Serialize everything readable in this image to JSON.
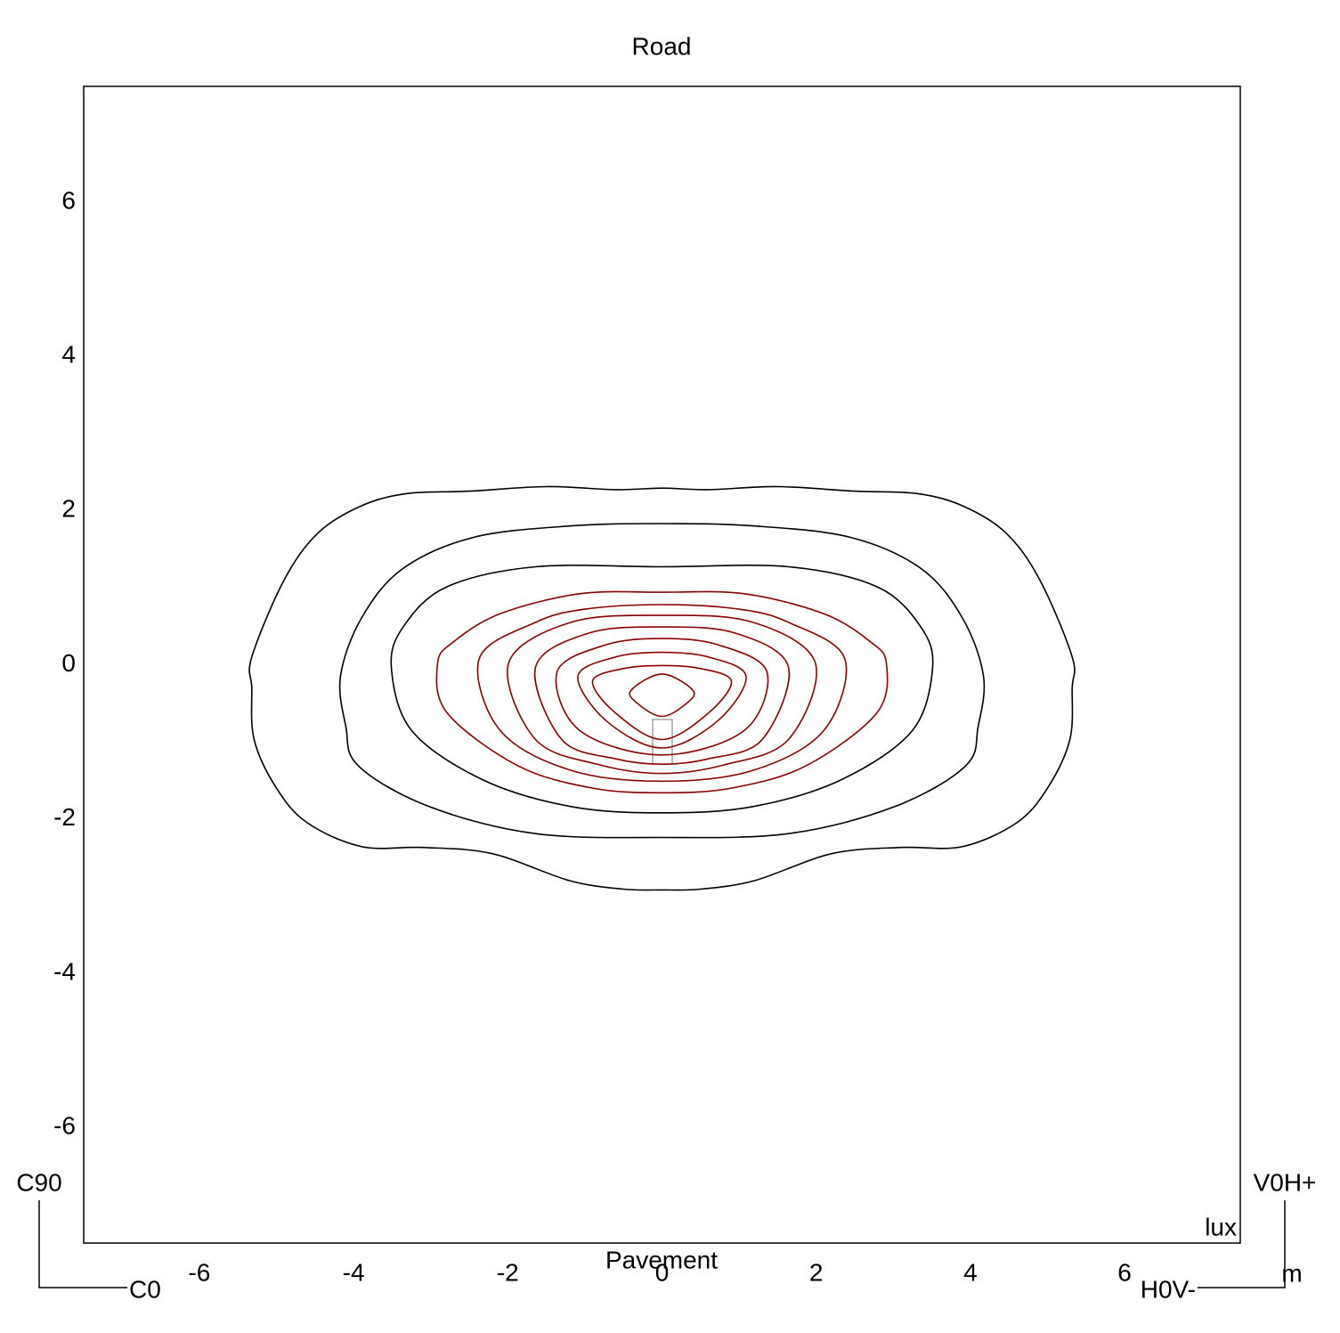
{
  "chart_data": {
    "type": "contour",
    "title": "Road",
    "xlabel": "Pavement",
    "unit": "lux",
    "corner_labels": {
      "c90": "C90",
      "c0": "C0",
      "v0h": "V0H+",
      "h0v": "H0V-",
      "m": "m"
    },
    "xlim": [
      -7.5,
      7.5
    ],
    "ylim": [
      -7.5,
      7.5
    ],
    "xticks": [
      -6,
      -4,
      -2,
      0,
      2,
      4,
      6
    ],
    "yticks": [
      -6,
      -4,
      -2,
      0,
      2,
      4,
      6
    ],
    "contours": [
      {
        "color": "#000000",
        "x": [
          0,
          -0.6,
          -1.5,
          -2.5,
          -3.3,
          -3.9,
          -4.46,
          -4.9,
          -5.32,
          -5.32,
          -5.29,
          -5.0,
          -4.6,
          -3.89,
          -3.1,
          -2.2,
          -1.2,
          -0.5,
          0,
          0.5,
          1.2,
          2.2,
          3.1,
          3.89,
          4.6,
          5.0,
          5.29,
          5.32,
          5.32,
          4.9,
          4.46,
          3.9,
          3.3,
          2.5,
          1.5,
          0.6
        ],
        "y": [
          2.29,
          2.27,
          2.31,
          2.25,
          2.22,
          2.06,
          1.71,
          1.1,
          0.1,
          -0.3,
          -0.97,
          -1.6,
          -2.05,
          -2.36,
          -2.37,
          -2.45,
          -2.8,
          -2.91,
          -2.92,
          -2.91,
          -2.8,
          -2.45,
          -2.37,
          -2.36,
          -2.05,
          -1.6,
          -0.97,
          -0.3,
          0.1,
          1.1,
          1.71,
          2.06,
          2.22,
          2.25,
          2.31,
          2.27
        ]
      },
      {
        "color": "#000000",
        "x": [
          0,
          -1.18,
          -2.45,
          -3.37,
          -3.9,
          -4.17,
          -4.1,
          -3.94,
          -3.02,
          -1.64,
          0,
          1.64,
          3.02,
          3.94,
          4.1,
          4.17,
          3.9,
          3.37,
          2.45,
          1.18
        ],
        "y": [
          1.83,
          1.8,
          1.65,
          1.24,
          0.6,
          -0.15,
          -0.8,
          -1.31,
          -1.84,
          -2.19,
          -2.24,
          -2.19,
          -1.84,
          -1.31,
          -0.8,
          -0.15,
          0.6,
          1.24,
          1.65,
          1.8
        ]
      },
      {
        "color": "#000000",
        "x": [
          0,
          -1.64,
          -2.79,
          -3.35,
          -3.51,
          -3.25,
          -2.33,
          -1.18,
          0,
          1.18,
          2.33,
          3.25,
          3.51,
          3.35,
          2.79,
          1.64
        ],
        "y": [
          1.27,
          1.27,
          1.01,
          0.5,
          -0.03,
          -0.85,
          -1.49,
          -1.84,
          -1.92,
          -1.84,
          -1.49,
          -0.85,
          -0.03,
          0.5,
          1.01,
          1.27
        ]
      },
      {
        "color": "#8b0000",
        "x": [
          0,
          -1.07,
          -2.1,
          -2.7,
          -2.91,
          -2.79,
          -1.87,
          -0.9,
          0,
          0.9,
          1.87,
          2.79,
          2.91,
          2.7,
          2.1,
          1.07
        ],
        "y": [
          0.94,
          0.92,
          0.66,
          0.3,
          0.02,
          -0.62,
          -1.31,
          -1.6,
          -1.66,
          -1.6,
          -1.31,
          -0.62,
          0.02,
          0.3,
          0.66,
          0.92
        ]
      },
      {
        "color": "#8b0000",
        "x": [
          0,
          -1.0,
          -1.64,
          -2.37,
          -2.1,
          -1.18,
          0,
          1.18,
          2.1,
          2.37,
          1.64,
          1.0
        ],
        "y": [
          0.78,
          0.72,
          0.55,
          0.08,
          -0.85,
          -1.37,
          -1.51,
          -1.37,
          -0.85,
          0.08,
          0.55,
          0.72
        ]
      },
      {
        "color": "#8b0000",
        "x": [
          0,
          -1.18,
          -1.99,
          -1.64,
          -0.8,
          0,
          0.8,
          1.64,
          1.99,
          1.18
        ],
        "y": [
          0.64,
          0.55,
          0.02,
          -0.97,
          -1.3,
          -1.41,
          -1.3,
          -0.97,
          0.02,
          0.55
        ]
      },
      {
        "color": "#8b0000",
        "x": [
          0,
          -0.95,
          -1.64,
          -1.3,
          -0.6,
          0,
          0.6,
          1.3,
          1.64,
          0.95
        ],
        "y": [
          0.49,
          0.41,
          -0.03,
          -0.97,
          -1.22,
          -1.29,
          -1.22,
          -0.97,
          -0.03,
          0.41
        ]
      },
      {
        "color": "#8b0000",
        "x": [
          0,
          -0.72,
          -1.36,
          -1.07,
          0,
          1.07,
          1.36,
          0.72
        ],
        "y": [
          0.34,
          0.26,
          -0.09,
          -0.85,
          -1.17,
          -0.85,
          -0.09,
          0.26
        ]
      },
      {
        "color": "#8b0000",
        "x": [
          0,
          -0.6,
          -1.09,
          -0.72,
          0,
          0.72,
          1.09,
          0.6
        ],
        "y": [
          0.16,
          0.1,
          -0.15,
          -0.73,
          -1.08,
          -0.73,
          -0.15,
          0.1
        ]
      },
      {
        "color": "#8b0000",
        "x": [
          0,
          -0.5,
          -0.9,
          -0.61,
          0,
          0.61,
          0.9,
          0.5
        ],
        "y": [
          -0.01,
          -0.05,
          -0.21,
          -0.62,
          -0.97,
          -0.62,
          -0.21,
          -0.05
        ]
      },
      {
        "color": "#8b0000",
        "x": [
          0,
          -0.4,
          -0.32,
          0,
          0.32,
          0.4
        ],
        "y": [
          -0.12,
          -0.33,
          -0.5,
          -0.67,
          -0.5,
          -0.33
        ]
      }
    ]
  }
}
